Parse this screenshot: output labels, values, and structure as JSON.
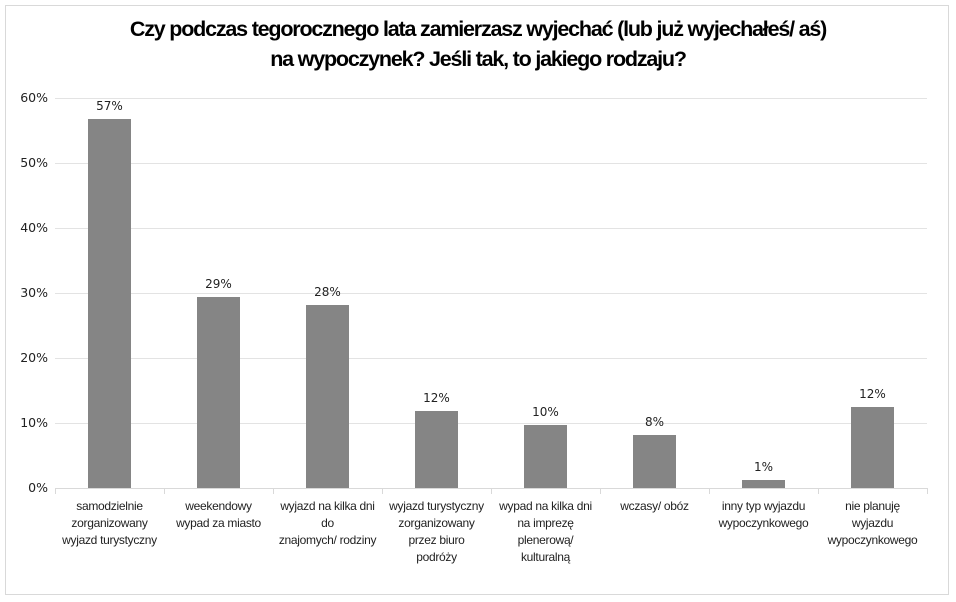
{
  "chart_data": {
    "type": "bar",
    "title": "Czy podczas tegorocznego lata zamierzasz wyjechać (lub już wyjechałeś/ aś) na wypoczynek? Jeśli tak, to jakiego rodzaju?",
    "title_lines": [
      "Czy podczas tegorocznego lata zamierzasz wyjechać (lub już wyjechałeś/ aś)",
      "na wypoczynek? Jeśli tak, to jakiego rodzaju?"
    ],
    "categories": [
      "samodzielnie zorganizowany wyjazd turystyczny",
      "weekendowy wypad za miasto",
      "wyjazd na kilka dni do znajomych/ rodziny",
      "wyjazd turystyczny zorganizowany przez biuro podróży",
      "wypad na kilka dni na imprezę plenerową/ kulturalną",
      "wczasy/ obóz",
      "inny typ wyjazdu wypoczynkowego",
      "nie planuję wyjazdu wypoczynkowego"
    ],
    "category_lines": [
      [
        "samodzielnie",
        "zorganizowany",
        "wyjazd turystyczny"
      ],
      [
        "weekendowy",
        "wypad za miasto"
      ],
      [
        "wyjazd na kilka dni",
        "do",
        "znajomych/ rodziny"
      ],
      [
        "wyjazd turystyczny",
        "zorganizowany",
        "przez biuro",
        "podróży"
      ],
      [
        "wypad na kilka dni",
        "na imprezę",
        "plenerową/",
        "kulturalną"
      ],
      [
        "wczasy/ obóz"
      ],
      [
        "inny typ wyjazdu",
        "wypoczynkowego"
      ],
      [
        "nie planuję",
        "wyjazdu",
        "wypoczynkowego"
      ]
    ],
    "values": [
      56.8,
      29.4,
      28.2,
      11.8,
      9.7,
      8.2,
      1.3,
      12.4
    ],
    "data_labels": [
      "57%",
      "29%",
      "28%",
      "12%",
      "10%",
      "8%",
      "1%",
      "12%"
    ],
    "xlabel": "",
    "ylabel": "",
    "ylim": [
      0,
      60
    ],
    "yticks": [
      "0%",
      "10%",
      "20%",
      "30%",
      "40%",
      "50%",
      "60%"
    ],
    "grid": true,
    "legend": "none",
    "bar_color": "#858585"
  }
}
